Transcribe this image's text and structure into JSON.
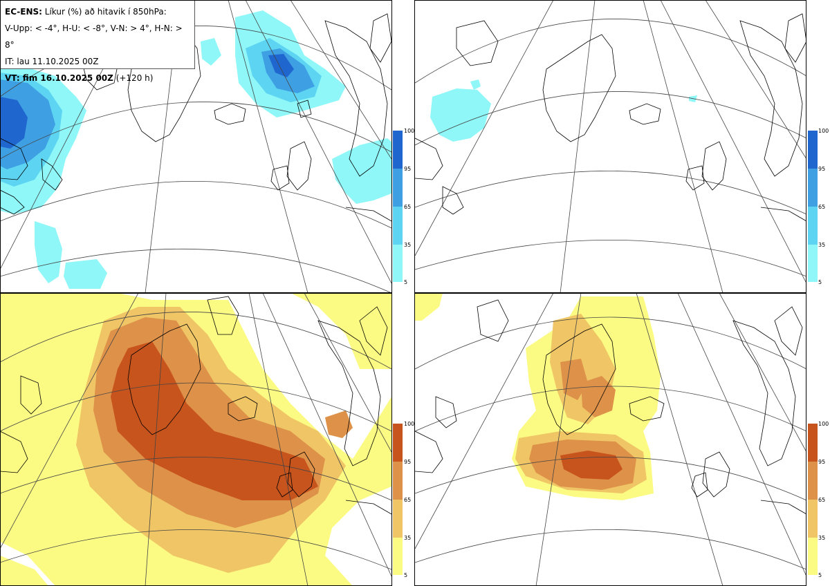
{
  "header": {
    "line1_bold": "EC-ENS:",
    "line1_rest": " Líkur (%) að hitavik í 850hPa:",
    "line2": "V-Upp: < -4°, H-U: < -8°, V-N: > 4°, H-N: > 8°",
    "line3": "IT: lau 11.10.2025 00Z",
    "line4_bold": "VT: fim 16.10.2025 00Z",
    "line4_rest": " (+120 h)"
  },
  "colorbar_ticks": [
    "100",
    "95",
    "65",
    "35",
    "5"
  ],
  "colors": {
    "blue": [
      "#8ff7f7",
      "#5dd5f2",
      "#3f9fe3",
      "#1f66cf"
    ],
    "orange": [
      "#fbfb84",
      "#efc566",
      "#de9148",
      "#c7541d"
    ]
  },
  "panels": [
    {
      "id": "cold-4",
      "scheme": "blue"
    },
    {
      "id": "cold-8",
      "scheme": "blue"
    },
    {
      "id": "warm-4",
      "scheme": "orange"
    },
    {
      "id": "warm-8",
      "scheme": "orange"
    }
  ]
}
